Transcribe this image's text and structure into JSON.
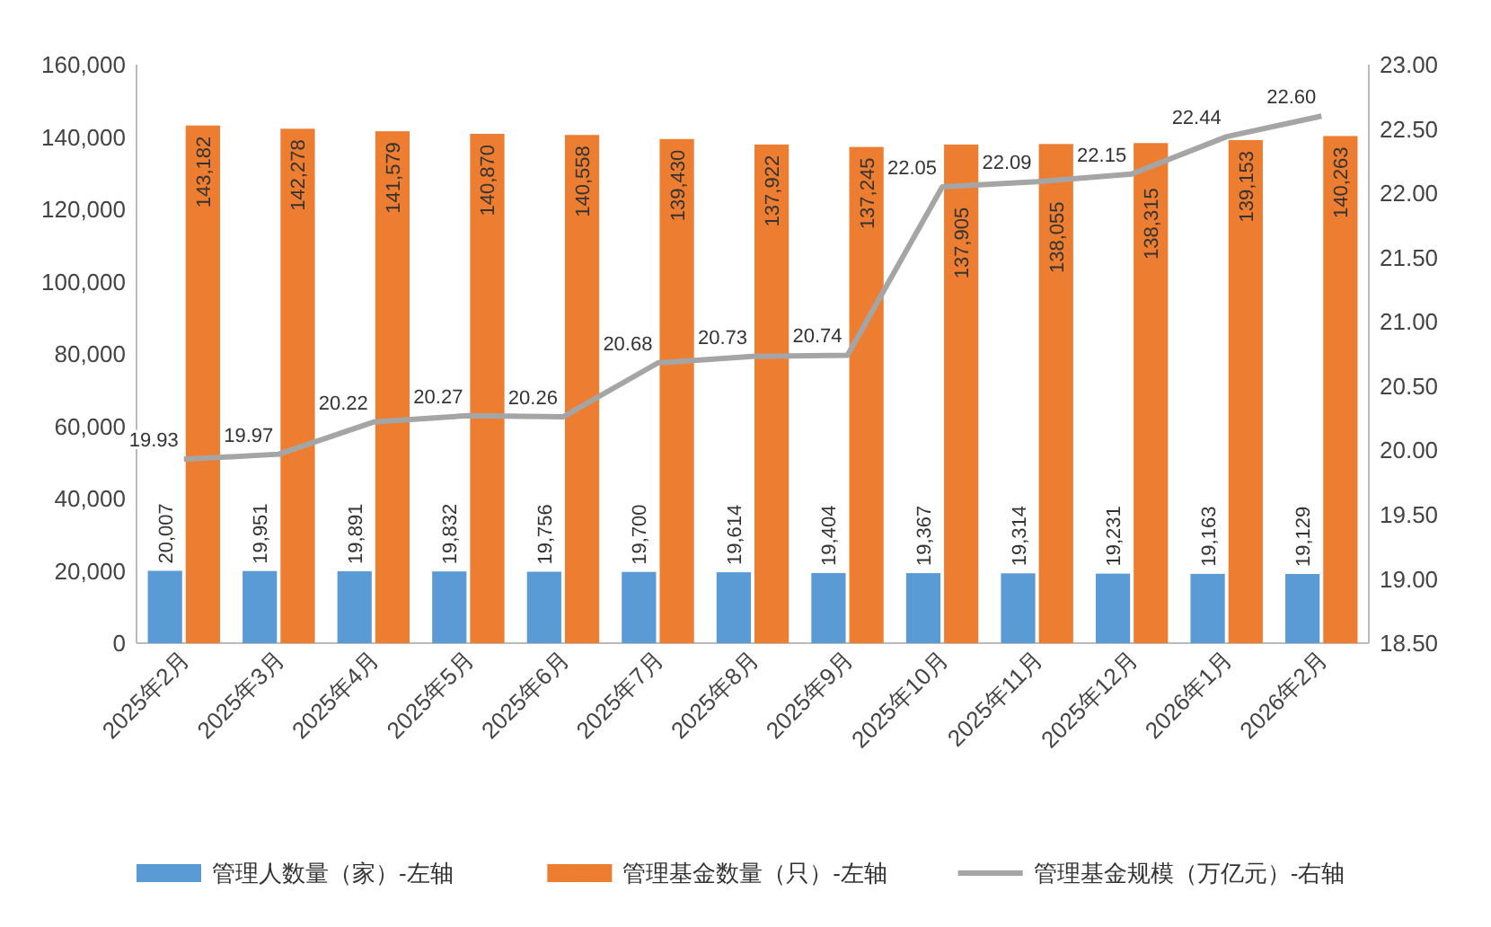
{
  "chart_data": {
    "type": "bar",
    "categories": [
      "2025年2月",
      "2025年3月",
      "2025年4月",
      "2025年5月",
      "2025年6月",
      "2025年7月",
      "2025年8月",
      "2025年9月",
      "2025年10月",
      "2025年11月",
      "2025年12月",
      "2026年1月",
      "2026年2月"
    ],
    "series": [
      {
        "name": "管理人数量（家）-左轴",
        "color": "#5b9bd5",
        "values": [
          20007,
          19951,
          19891,
          19832,
          19756,
          19700,
          19614,
          19404,
          19367,
          19314,
          19231,
          19163,
          19129
        ],
        "value_labels": [
          "20,007",
          "19,951",
          "19,891",
          "19,832",
          "19,756",
          "19,700",
          "19,614",
          "19,404",
          "19,367",
          "19,314",
          "19,231",
          "19,163",
          "19,129"
        ]
      },
      {
        "name": "管理基金数量（只）-左轴",
        "color": "#ed7d31",
        "values": [
          143182,
          142278,
          141579,
          140870,
          140558,
          139430,
          137922,
          137245,
          137905,
          138055,
          138315,
          139153,
          140263
        ],
        "value_labels": [
          "143,182",
          "142,278",
          "141,579",
          "140,870",
          "140,558",
          "139,430",
          "137,922",
          "137,245",
          "137,905",
          "138,055",
          "138,315",
          "139,153",
          "140,263"
        ]
      },
      {
        "name": "管理基金规模（万亿元）-右轴",
        "type": "line",
        "axis": "y2",
        "color": "#a5a5a5",
        "values": [
          19.93,
          19.97,
          20.22,
          20.27,
          20.26,
          20.68,
          20.73,
          20.74,
          22.05,
          22.09,
          22.15,
          22.44,
          22.6
        ],
        "value_labels": [
          "19.93",
          "19.97",
          "20.22",
          "20.27",
          "20.26",
          "20.68",
          "20.73",
          "20.74",
          "22.05",
          "22.09",
          "22.15",
          "22.44",
          "22.60"
        ]
      }
    ],
    "ylim": [
      0,
      160000
    ],
    "yticks": [
      {
        "value": 0,
        "label": "0"
      },
      {
        "value": 20000,
        "label": "20,000"
      },
      {
        "value": 40000,
        "label": "40,000"
      },
      {
        "value": 60000,
        "label": "60,000"
      },
      {
        "value": 80000,
        "label": "80,000"
      },
      {
        "value": 100000,
        "label": "100,000"
      },
      {
        "value": 120000,
        "label": "120,000"
      },
      {
        "value": 140000,
        "label": "140,000"
      },
      {
        "value": 160000,
        "label": "160,000"
      }
    ],
    "y2lim": [
      18.5,
      23
    ],
    "y2ticks": [
      {
        "value": 18.5,
        "label": "18.50"
      },
      {
        "value": 19,
        "label": "19.00"
      },
      {
        "value": 19.5,
        "label": "19.50"
      },
      {
        "value": 20,
        "label": "20.00"
      },
      {
        "value": 20.5,
        "label": "20.50"
      },
      {
        "value": 21,
        "label": "21.00"
      },
      {
        "value": 21.5,
        "label": "21.50"
      },
      {
        "value": 22,
        "label": "22.00"
      },
      {
        "value": 22.5,
        "label": "22.50"
      },
      {
        "value": 23,
        "label": "23.00"
      }
    ],
    "legend": "bottom"
  }
}
